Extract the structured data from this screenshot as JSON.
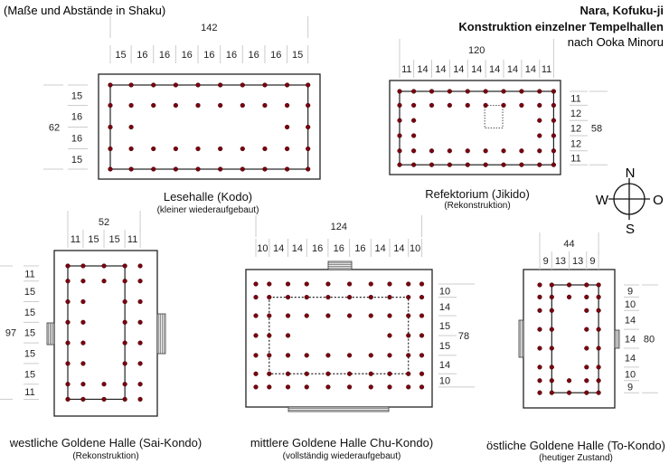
{
  "note": "(Maße und Abstände in Shaku)",
  "header": {
    "line1": "Nara, Kofuku-ji",
    "line2": "Konstruktion einzelner Tempelhallen",
    "line3": "nach Ooka Minoru"
  },
  "compass": {
    "n": "N",
    "s": "S",
    "w": "W",
    "o": "O"
  },
  "colors": {
    "column": "#7a0010",
    "line": "#222222",
    "dimline": "#cccccc"
  },
  "halls": [
    {
      "id": "kodo",
      "title": "Lesehalle (Kodo)",
      "subtitle": "(kleiner wiederaufgebaut)",
      "total_x": "142",
      "spans_x": [
        "15",
        "16",
        "16",
        "16",
        "16",
        "16",
        "16",
        "16",
        "15"
      ],
      "total_y": "62",
      "spans_y": [
        "15",
        "16",
        "16",
        "15"
      ],
      "columns": [
        "1111111111",
        "1111111111",
        "1100000011",
        "1111111111",
        "1111111111"
      ]
    },
    {
      "id": "jikido",
      "title": "Refektorium  (Jikido)",
      "subtitle": "(Rekonstruktion)",
      "total_x": "120",
      "spans_x": [
        "11",
        "14",
        "14",
        "14",
        "14",
        "14",
        "14",
        "14",
        "11"
      ],
      "total_y": "58",
      "spans_y": [
        "11",
        "12",
        "12",
        "12",
        "11"
      ],
      "columns": [
        "1111111111",
        "1111111111",
        "1100000011",
        "1100000011",
        "1111111111",
        "1111111111"
      ]
    },
    {
      "id": "sai-kondo",
      "title": "westliche Goldene Halle (Sai-Kondo)",
      "subtitle": "(Rekonstruktion)",
      "total_x": "52",
      "spans_x": [
        "11",
        "15",
        "15",
        "11"
      ],
      "total_y": "97",
      "spans_y": [
        "11",
        "15",
        "15",
        "15",
        "15",
        "15",
        "11"
      ],
      "columns": [
        "11111",
        "11111",
        "11011",
        "11011",
        "11011",
        "11011",
        "11111",
        "11111"
      ]
    },
    {
      "id": "chu-kondo",
      "title": "mittlere Goldene Halle Chu-Kondo)",
      "subtitle": "(vollständig wiederaufgebaut)",
      "total_x": "124",
      "spans_x": [
        "10",
        "14",
        "14",
        "16",
        "16",
        "16",
        "14",
        "14",
        "10"
      ],
      "total_y": "78",
      "spans_y": [
        "10",
        "14",
        "15",
        "15",
        "14",
        "10"
      ],
      "columns": [
        "1111111111",
        "1111111111",
        "1111111111",
        "1110000111",
        "1111111111",
        "1111111111",
        "1111111111"
      ]
    },
    {
      "id": "to-kondo",
      "title": "östliche Goldene Halle (To-Kondo)",
      "subtitle": "(heutiger Zustand)",
      "total_x": "44",
      "spans_x": [
        "9",
        "13",
        "13",
        "9"
      ],
      "total_y": "80",
      "spans_y": [
        "9",
        "10",
        "14",
        "14",
        "14",
        "10",
        "9"
      ],
      "columns": [
        "11111",
        "11111",
        "11011",
        "11011",
        "11011",
        "11011",
        "11111",
        "11111"
      ]
    }
  ]
}
